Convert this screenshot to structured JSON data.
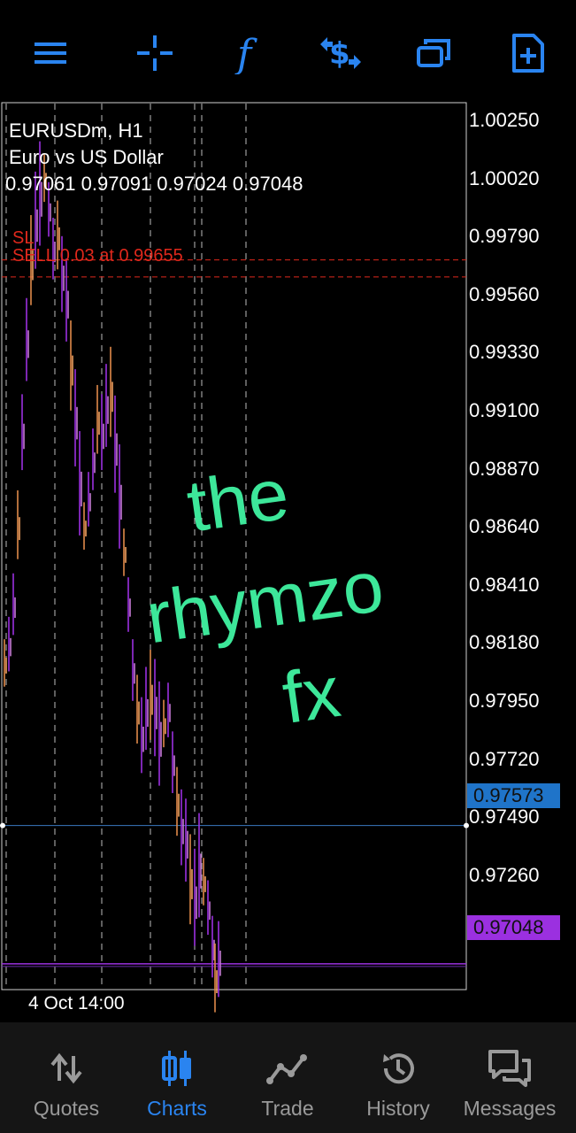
{
  "toolbar": {
    "icons": [
      "menu-icon",
      "crosshair-icon",
      "indicator-f-icon",
      "currency-exchange-icon",
      "windows-icon",
      "new-order-icon"
    ],
    "accent": "#2a84f0"
  },
  "chart": {
    "symbol_title": "EURUSDm, H1",
    "description": "Euro vs US Dollar",
    "ohlc": "0.97061 0.97091 0.97024 0.97048",
    "sl_label": "SL",
    "order_label": "SELL 0.03 at 0.99655",
    "price_axis": [
      "1.00250",
      "1.00020",
      "0.99790",
      "0.99560",
      "0.99330",
      "0.99100",
      "0.98870",
      "0.98640",
      "0.98410",
      "0.98180",
      "0.97950",
      "0.97720",
      "0.97490",
      "0.97260"
    ],
    "bid_tag": "0.97573",
    "ask_tag": "0.97048",
    "time_label": "4 Oct 14:00",
    "watermark": [
      "the",
      "rhymzo",
      "fx"
    ]
  },
  "chart_data": {
    "type": "candlestick",
    "y_range": [
      0.9695,
      1.0032
    ],
    "sl_price": 0.9972,
    "order_price": 0.99655,
    "bid_price": 0.97573,
    "ask_price": 0.97048
  },
  "nav": {
    "items": [
      {
        "label": "Quotes",
        "icon": "swap-arrows-icon"
      },
      {
        "label": "Charts",
        "icon": "candles-icon",
        "active": true
      },
      {
        "label": "Trade",
        "icon": "trend-line-icon"
      },
      {
        "label": "History",
        "icon": "history-icon"
      },
      {
        "label": "Messages",
        "icon": "chat-icon"
      }
    ]
  }
}
